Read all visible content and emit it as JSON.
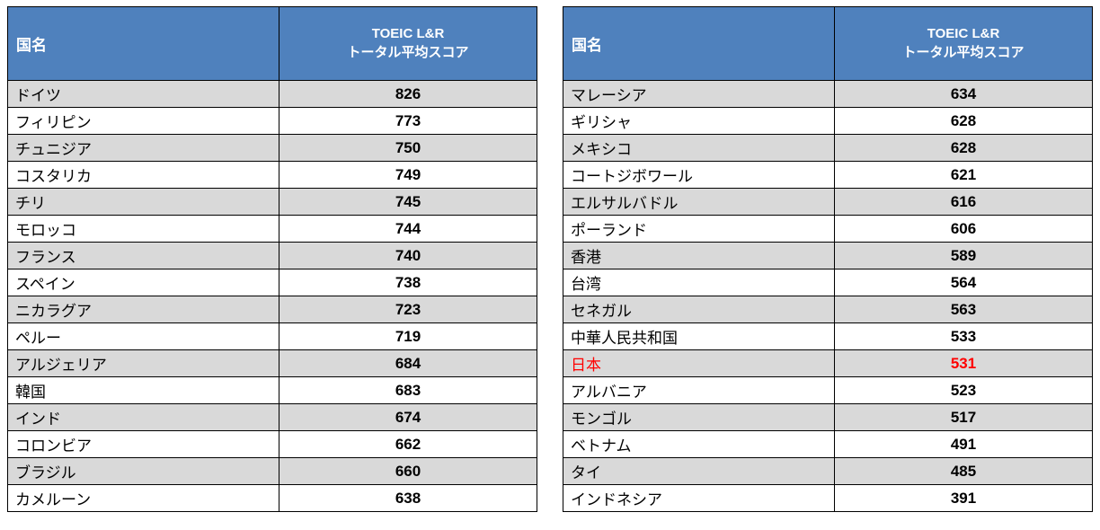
{
  "header": {
    "country_label": "国名",
    "score_label_line1": "TOEIC L&R",
    "score_label_line2": "トータル平均スコア"
  },
  "colors": {
    "header_bg": "#4f81bd",
    "alt_row_bg": "#d9d9d9",
    "highlight_text": "#ff0000",
    "border": "#000000"
  },
  "chart_data": {
    "type": "table",
    "columns": [
      "国名",
      "TOEIC L&R トータル平均スコア"
    ],
    "highlighted_country": "日本",
    "left_table_rows": [
      [
        "ドイツ",
        826
      ],
      [
        "フィリピン",
        773
      ],
      [
        "チュニジア",
        750
      ],
      [
        "コスタリカ",
        749
      ],
      [
        "チリ",
        745
      ],
      [
        "モロッコ",
        744
      ],
      [
        "フランス",
        740
      ],
      [
        "スペイン",
        738
      ],
      [
        "ニカラグア",
        723
      ],
      [
        "ペルー",
        719
      ],
      [
        "アルジェリア",
        684
      ],
      [
        "韓国",
        683
      ],
      [
        "インド",
        674
      ],
      [
        "コロンビア",
        662
      ],
      [
        "ブラジル",
        660
      ],
      [
        "カメルーン",
        638
      ]
    ],
    "right_table_rows": [
      [
        "マレーシア",
        634
      ],
      [
        "ギリシャ",
        628
      ],
      [
        "メキシコ",
        628
      ],
      [
        "コートジボワール",
        621
      ],
      [
        "エルサルバドル",
        616
      ],
      [
        "ポーランド",
        606
      ],
      [
        "香港",
        589
      ],
      [
        "台湾",
        564
      ],
      [
        "セネガル",
        563
      ],
      [
        "中華人民共和国",
        533
      ],
      [
        "日本",
        531
      ],
      [
        "アルバニア",
        523
      ],
      [
        "モンゴル",
        517
      ],
      [
        "ベトナム",
        491
      ],
      [
        "タイ",
        485
      ],
      [
        "インドネシア",
        391
      ]
    ]
  }
}
